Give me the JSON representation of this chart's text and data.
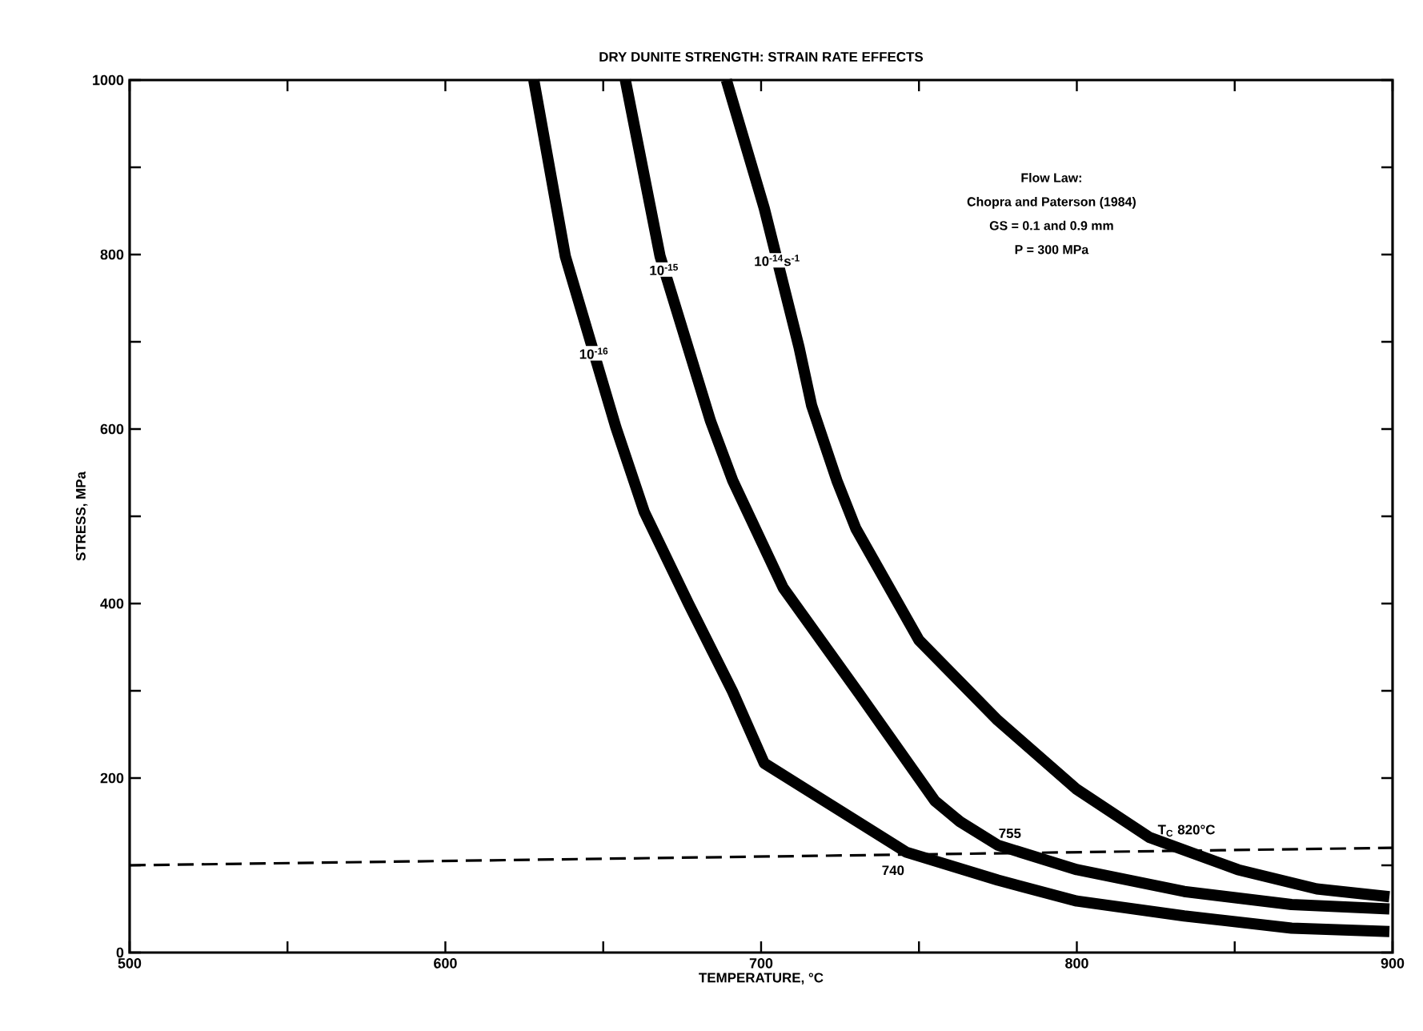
{
  "chart_data": {
    "type": "line",
    "title": "DRY DUNITE STRENGTH: STRAIN RATE EFFECTS",
    "xlabel": "TEMPERATURE, °C",
    "ylabel": "STRESS, MPa",
    "xlim": [
      500,
      900
    ],
    "ylim": [
      0,
      1000
    ],
    "xticks": [
      500,
      {
        "value": 550,
        "label": null
      },
      600,
      {
        "value": 650,
        "label": null
      },
      700,
      {
        "value": 750,
        "label": null
      },
      800,
      {
        "value": 850,
        "label": null
      },
      900
    ],
    "yticks": [
      0,
      {
        "value": 100,
        "label": null
      },
      200,
      {
        "value": 300,
        "label": null
      },
      400,
      {
        "value": 500,
        "label": null
      },
      600,
      {
        "value": 700,
        "label": null
      },
      800,
      {
        "value": 900,
        "label": null
      },
      1000
    ],
    "grid": false,
    "legend": false,
    "marker": "none",
    "series": [
      {
        "name": "10$^{-16}$",
        "color": "#000000",
        "line_style": "solid",
        "x": [
          628,
          638,
          654,
          663,
          677,
          691,
          701,
          746,
          775,
          800,
          834,
          868,
          899
        ],
        "values": [
          1000,
          798,
          602,
          505,
          400,
          299,
          217,
          115,
          83,
          59,
          42,
          28,
          24
        ]
      },
      {
        "name": "10$^{-15}$",
        "color": "#000000",
        "line_style": "solid",
        "x": [
          657,
          668,
          684,
          691,
          707,
          731,
          755,
          763,
          775,
          800,
          834,
          868,
          899
        ],
        "values": [
          1000,
          798,
          609,
          541,
          418,
          297,
          174,
          150,
          123,
          95,
          70,
          55,
          50
        ]
      },
      {
        "name": "10$^{-14}$s$^{-1}$",
        "color": "#000000",
        "line_style": "solid",
        "x": [
          689,
          701,
          712,
          716,
          724,
          730,
          750,
          775,
          800,
          823,
          851,
          876,
          899
        ],
        "values": [
          1000,
          853,
          694,
          627,
          541,
          486,
          358,
          266,
          187,
          132,
          95,
          73,
          64
        ]
      },
      {
        "color": "#000000",
        "line_style": "dashed",
        "x": [
          500,
          900
        ],
        "values": [
          100,
          120
        ]
      }
    ],
    "annotations": [
      "Flow Law:",
      "Chopra and Paterson  (1984)",
      "GS = 0.1 and 0.9 mm",
      "P = 300 MPa",
      {
        "text": "740",
        "x": 747,
        "y": 113
      },
      {
        "text": "755",
        "x": 784,
        "y": 118
      },
      {
        "text": "T$_{C}$ 820°C",
        "x": 823,
        "y": 116
      }
    ]
  }
}
